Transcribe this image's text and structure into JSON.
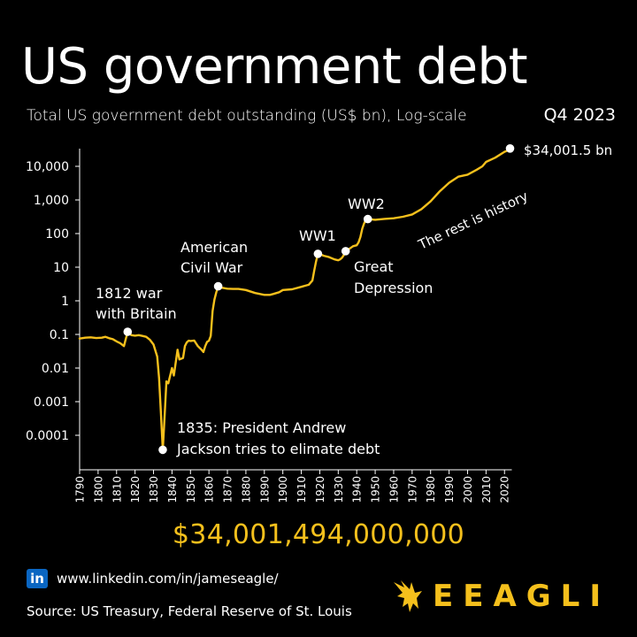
{
  "header": {
    "title": "US government debt",
    "subtitle": "Total US government debt outstanding (US$ bn), Log-scale",
    "period": "Q4 2023"
  },
  "total_label": "$34,001,494,000,000",
  "footer": {
    "linkedin_icon": "in",
    "linkedin_url": "www.linkedin.com/in/jameseagle/",
    "source": "Source: US Treasury, Federal Reserve of St. Louis",
    "brand": "EEAGLI"
  },
  "colors": {
    "background": "#000000",
    "line": "#f5c01c",
    "text": "#ffffff",
    "brand": "#f5c01c",
    "linkedin": "#0a66c2"
  },
  "chart_data": {
    "type": "line",
    "yscale": "log",
    "title": "US government debt",
    "subtitle": "Total US government debt outstanding (US$ bn), Log-scale",
    "xlim": [
      1790,
      2023
    ],
    "ylim": [
      1e-06,
      100000
    ],
    "x_ticks": [
      1790,
      1800,
      1810,
      1820,
      1830,
      1840,
      1850,
      1860,
      1870,
      1880,
      1890,
      1900,
      1910,
      1920,
      1930,
      1940,
      1950,
      1960,
      1970,
      1980,
      1990,
      2000,
      2010,
      2020
    ],
    "y_ticks": [
      {
        "value": 0.0001,
        "label": "0.0001"
      },
      {
        "value": 0.001,
        "label": "0.001"
      },
      {
        "value": 0.01,
        "label": "0.01"
      },
      {
        "value": 0.1,
        "label": "0.1"
      },
      {
        "value": 1,
        "label": "1"
      },
      {
        "value": 10,
        "label": "10"
      },
      {
        "value": 100,
        "label": "100"
      },
      {
        "value": 1000,
        "label": "1,000"
      },
      {
        "value": 10000,
        "label": "10,000"
      }
    ],
    "series": [
      {
        "x": [
          1790,
          1793,
          1796,
          1799,
          1802,
          1804,
          1806,
          1808,
          1810,
          1812,
          1814,
          1816,
          1818,
          1820,
          1822,
          1824,
          1826,
          1828,
          1830,
          1832,
          1833,
          1834,
          1835,
          1836,
          1837,
          1838,
          1840,
          1841,
          1843,
          1844,
          1846,
          1847,
          1848,
          1849,
          1850,
          1852,
          1854,
          1856,
          1857,
          1858,
          1859,
          1860,
          1861,
          1862,
          1863,
          1864,
          1865,
          1866,
          1868,
          1870,
          1873,
          1876,
          1880,
          1885,
          1890,
          1893,
          1895,
          1898,
          1900,
          1905,
          1910,
          1912,
          1914,
          1916,
          1917,
          1918,
          1919,
          1920,
          1922,
          1925,
          1928,
          1930,
          1931,
          1932,
          1933,
          1934,
          1936,
          1938,
          1940,
          1941,
          1942,
          1943,
          1944,
          1945,
          1946,
          1948,
          1950,
          1955,
          1960,
          1965,
          1970,
          1975,
          1980,
          1985,
          1990,
          1995,
          2000,
          2005,
          2008,
          2010,
          2015,
          2020,
          2021,
          2023
        ],
        "y": [
          0.075,
          0.08,
          0.082,
          0.078,
          0.08,
          0.085,
          0.077,
          0.072,
          0.062,
          0.055,
          0.045,
          0.12,
          0.095,
          0.092,
          0.095,
          0.09,
          0.085,
          0.07,
          0.05,
          0.022,
          0.005,
          0.00045,
          3.7e-05,
          0.00034,
          0.004,
          0.0035,
          0.01,
          0.006,
          0.035,
          0.018,
          0.02,
          0.045,
          0.058,
          0.065,
          0.064,
          0.066,
          0.045,
          0.035,
          0.03,
          0.045,
          0.06,
          0.065,
          0.09,
          0.5,
          1.1,
          1.8,
          2.7,
          2.5,
          2.4,
          2.3,
          2.25,
          2.25,
          2.1,
          1.7,
          1.5,
          1.5,
          1.6,
          1.8,
          2.1,
          2.2,
          2.6,
          2.8,
          3.0,
          4.0,
          8.0,
          15,
          25,
          25,
          22,
          20,
          17,
          16,
          17,
          19,
          23,
          30,
          35,
          42,
          45,
          55,
          80,
          140,
          200,
          260,
          270,
          262,
          257,
          274,
          286,
          317,
          371,
          533,
          909,
          1817,
          3233,
          4921,
          5674,
          7933,
          9986,
          13562,
          18151,
          26945,
          28429,
          34001
        ]
      }
    ],
    "annotations": [
      {
        "label_lines": [
          "1812 war",
          "with Britain"
        ],
        "x": 1816,
        "y": 0.12
      },
      {
        "label_lines": [
          "1835: President Andrew",
          "Jackson tries to elimate debt"
        ],
        "x": 1835,
        "y": 3.7e-05
      },
      {
        "label_lines": [
          "American",
          "Civil War"
        ],
        "x": 1865,
        "y": 2.7
      },
      {
        "label_lines": [
          "WW1"
        ],
        "x": 1919,
        "y": 25
      },
      {
        "label_lines": [
          "Great",
          "Depression"
        ],
        "x": 1934,
        "y": 30
      },
      {
        "label_lines": [
          "WW2"
        ],
        "x": 1946,
        "y": 270
      },
      {
        "label_lines": [
          "The rest is history"
        ],
        "x": 1985,
        "y": 300
      },
      {
        "label_lines": [
          "$34,001.5 bn"
        ],
        "x": 2023,
        "y": 34001
      }
    ]
  }
}
